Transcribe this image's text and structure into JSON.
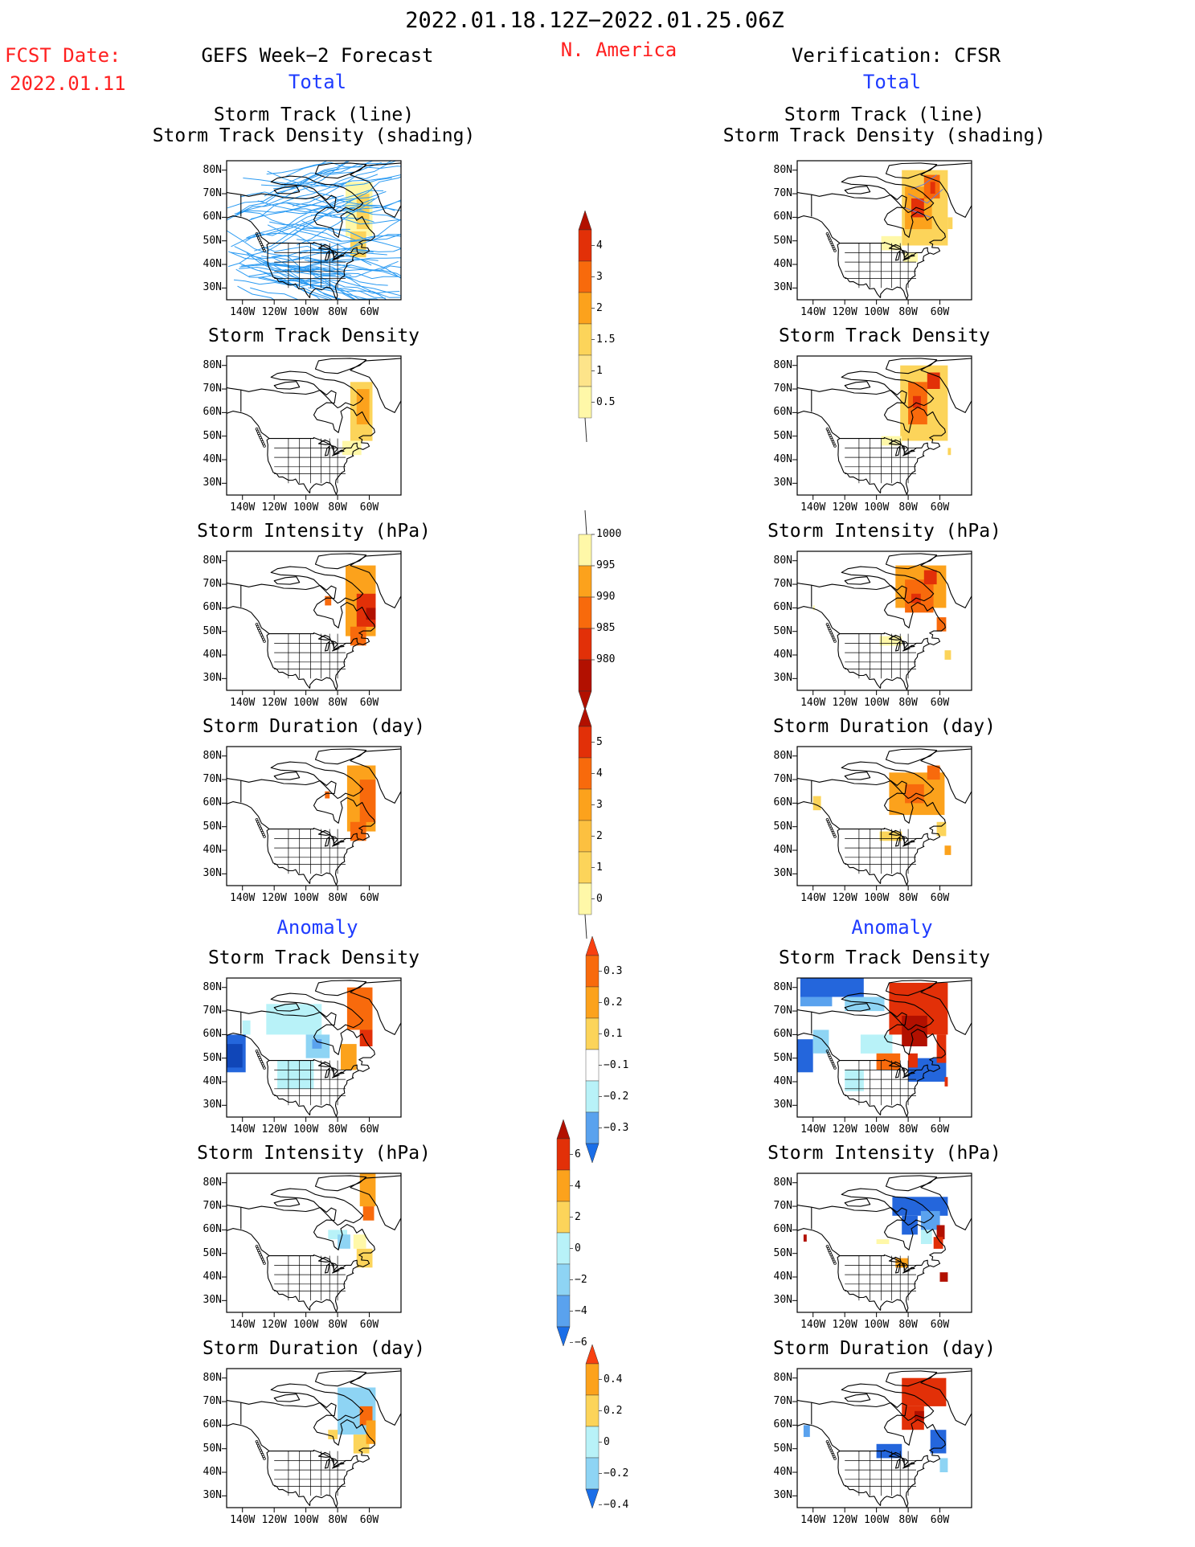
{
  "header": {
    "period": "2022.01.18.12Z−2022.01.25.06Z",
    "fcst_label": "FCST Date:",
    "fcst_date": "2022.01.11",
    "left_title": "GEFS Week−2 Forecast",
    "region": "N. America",
    "right_title": "Verification: CFSR",
    "total_label": "Total",
    "anomaly_label": "Anomaly"
  },
  "panel_titles": {
    "track_line": "Storm Track (line)",
    "track_shading": "Storm Track Density (shading)",
    "density": "Storm Track Density",
    "intensity": "Storm Intensity (hPa)",
    "duration": "Storm Duration (day)"
  },
  "axes": {
    "lat_labels": [
      "80N",
      "70N",
      "60N",
      "50N",
      "40N",
      "30N"
    ],
    "lon_labels": [
      "140W",
      "120W",
      "100W",
      "80W",
      "60W"
    ]
  },
  "colorbars": {
    "density": [
      "4",
      "3",
      "2",
      "1.5",
      "1",
      "0.5"
    ],
    "intensity": [
      "1000",
      "995",
      "990",
      "985",
      "980"
    ],
    "duration": [
      "5",
      "4",
      "3",
      "2",
      "1",
      "0"
    ],
    "density_anom": [
      "0.3",
      "0.2",
      "0.1",
      "−0.1",
      "−0.2",
      "−0.3"
    ],
    "intensity_anom": [
      "6",
      "4",
      "2",
      "0",
      "−2",
      "−4",
      "−6"
    ],
    "duration_anom": [
      "0.4",
      "0.2",
      "0",
      "−0.2",
      "−0.4"
    ]
  },
  "colors": {
    "label_red": "#ff2020",
    "label_blue": "#1f3cff",
    "track_line": "#2a9af2",
    "warm_scale": [
      "#fff8a8",
      "#fcd45a",
      "#fca21c",
      "#f86a0c",
      "#e23008",
      "#b21000"
    ],
    "cool_scale": [
      "#b8f2f8",
      "#8ed4f4",
      "#5aa2ee",
      "#2466dc",
      "#1046b8"
    ]
  }
}
